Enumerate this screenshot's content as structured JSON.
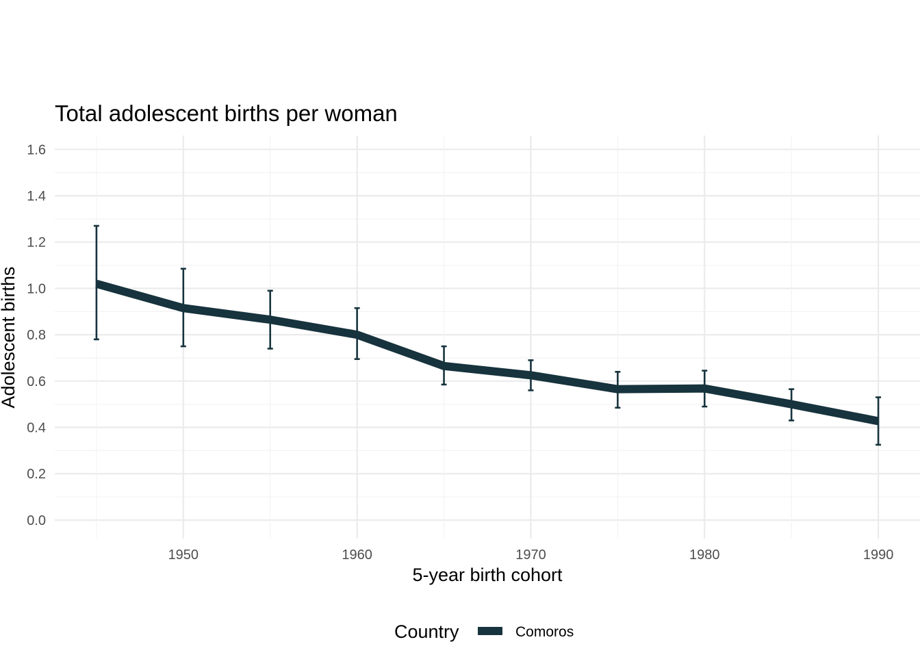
{
  "chart_data": {
    "type": "line",
    "title": "Total adolescent births per woman",
    "xlabel": "5-year birth cohort",
    "ylabel": "Adolescent births",
    "x": [
      1945,
      1950,
      1955,
      1960,
      1965,
      1970,
      1975,
      1980,
      1985,
      1990
    ],
    "x_ticks": [
      "1950",
      "1960",
      "1970",
      "1980",
      "1990"
    ],
    "y_ticks": [
      "0.0",
      "0.2",
      "0.4",
      "0.6",
      "0.8",
      "1.0",
      "1.2",
      "1.4",
      "1.6"
    ],
    "xlim": [
      1942.6,
      1992.4
    ],
    "ylim": [
      -0.08,
      1.66
    ],
    "grid": true,
    "legend": {
      "title": "Country",
      "position": "bottom"
    },
    "series": [
      {
        "name": "Comoros",
        "color": "#17333d",
        "values": [
          1.02,
          0.915,
          0.865,
          0.8,
          0.665,
          0.625,
          0.565,
          0.568,
          0.5,
          0.427
        ],
        "lower": [
          0.78,
          0.75,
          0.74,
          0.695,
          0.585,
          0.56,
          0.485,
          0.49,
          0.43,
          0.325
        ],
        "upper": [
          1.27,
          1.085,
          0.99,
          0.915,
          0.75,
          0.69,
          0.64,
          0.645,
          0.565,
          0.53
        ]
      }
    ]
  }
}
